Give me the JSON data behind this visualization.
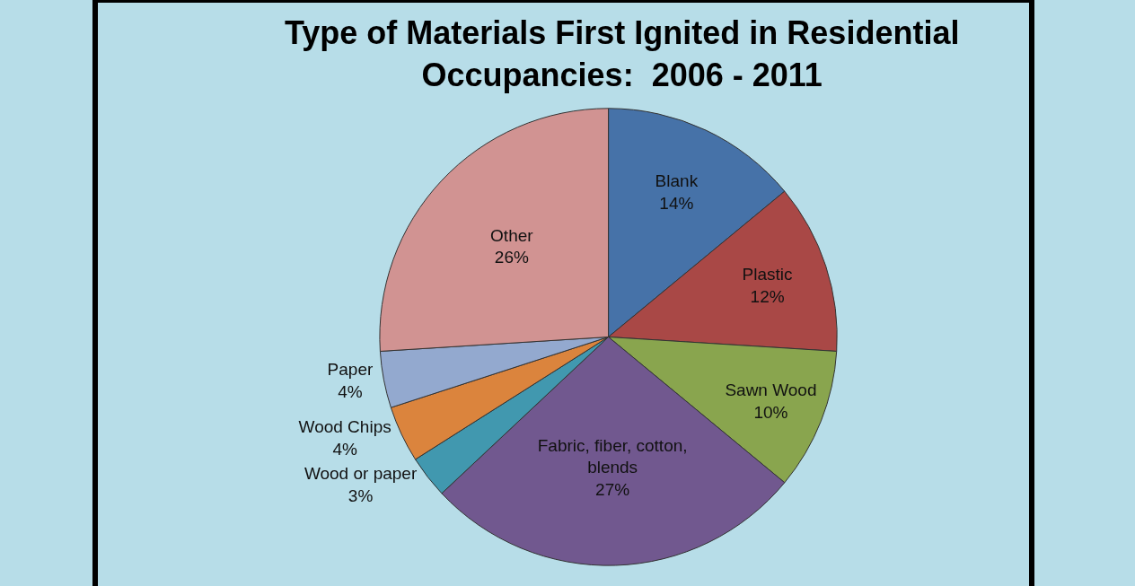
{
  "chart_data": {
    "type": "pie",
    "title": "Type of Materials First Ignited in Residential Occupancies:  2006 - 2011",
    "categories": [
      "Blank",
      "Plastic",
      "Sawn Wood",
      "Fabric, fiber, cotton, blends",
      "Wood or paper",
      "Wood Chips",
      "Paper",
      "Other"
    ],
    "values": [
      14,
      12,
      10,
      27,
      3,
      4,
      4,
      26
    ],
    "value_labels": [
      "14%",
      "12%",
      "10%",
      "27%",
      "3%",
      "4%",
      "4%",
      "26%"
    ],
    "colors": [
      "#4672a8",
      "#a94846",
      "#89a54e",
      "#71588f",
      "#4198af",
      "#db843d",
      "#93a9cf",
      "#d19392"
    ],
    "legend": false
  }
}
